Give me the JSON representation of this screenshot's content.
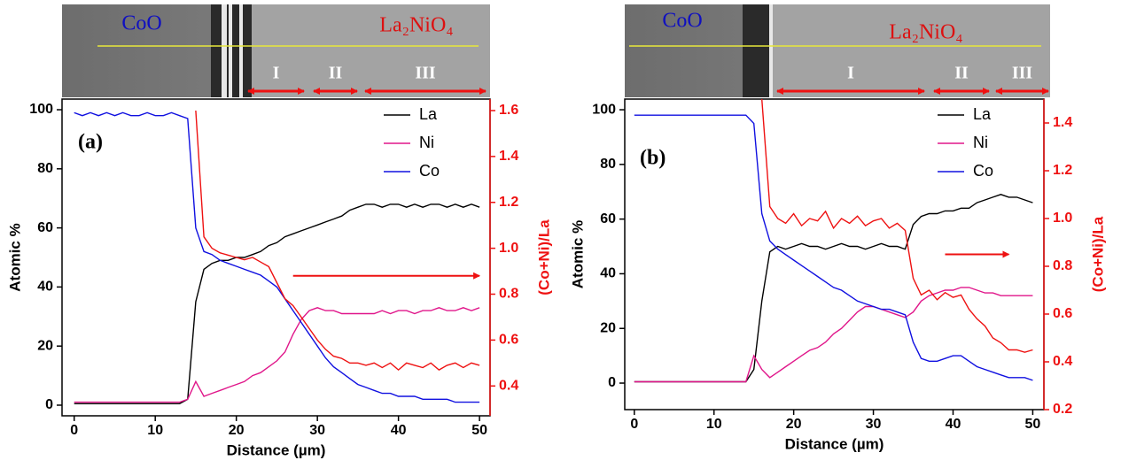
{
  "chart_data": [
    {
      "type": "line",
      "panel_label": "(a)",
      "xlabel": "Distance (µm)",
      "ylabel": "Atomic %",
      "image_labels": {
        "left": "CoO",
        "right": "La₂NiO₄",
        "regions": [
          "I",
          "II",
          "III"
        ]
      },
      "xlim": [
        -1.5,
        51.3
      ],
      "ylim": [
        -3.6,
        103.6
      ],
      "y2lim": [
        0.27,
        1.65
      ],
      "xticks": [
        0,
        10,
        20,
        30,
        40,
        50
      ],
      "yticks": [
        0,
        20,
        40,
        60,
        80,
        100
      ],
      "y2ticks": [
        0.4,
        0.6,
        0.8,
        {
          "value": 1,
          "label": "1.0"
        },
        1.2,
        1.4,
        1.6
      ],
      "legend": "upper right",
      "x": [
        0,
        1,
        2,
        3,
        4,
        5,
        6,
        7,
        8,
        9,
        10,
        11,
        12,
        13,
        14,
        15,
        16,
        17,
        18,
        19,
        20,
        21,
        22,
        23,
        24,
        25,
        26,
        27,
        28,
        29,
        30,
        31,
        32,
        33,
        34,
        35,
        36,
        37,
        38,
        39,
        40,
        41,
        42,
        43,
        44,
        45,
        46,
        47,
        48,
        49,
        50
      ],
      "series": [
        {
          "name": "La",
          "color": "#000000",
          "values": [
            0.5,
            0.5,
            0.5,
            0.5,
            0.5,
            0.5,
            0.5,
            0.5,
            0.5,
            0.5,
            0.5,
            0.5,
            0.5,
            0.5,
            2,
            35,
            46,
            48,
            49,
            49,
            50,
            50,
            51,
            52,
            54,
            55,
            57,
            58,
            59,
            60,
            61,
            62,
            63,
            64,
            66,
            67,
            68,
            68,
            67,
            68,
            68,
            67,
            68,
            67,
            68,
            68,
            67,
            68,
            67,
            68,
            67
          ]
        },
        {
          "name": "Ni",
          "color": "#e0168a",
          "values": [
            1,
            1,
            1,
            1,
            1,
            1,
            1,
            1,
            1,
            1,
            1,
            1,
            1,
            1,
            2,
            8,
            3,
            4,
            5,
            6,
            7,
            8,
            10,
            11,
            13,
            15,
            18,
            24,
            29,
            32,
            33,
            32,
            32,
            31,
            31,
            31,
            31,
            31,
            32,
            31,
            32,
            32,
            31,
            32,
            32,
            33,
            32,
            32,
            33,
            32,
            33
          ]
        },
        {
          "name": "Co",
          "color": "#1010e0",
          "values": [
            99,
            98,
            99,
            98,
            99,
            98,
            99,
            98,
            98,
            99,
            98,
            98,
            99,
            98,
            97,
            60,
            52,
            51,
            49,
            48,
            47,
            46,
            45,
            44,
            42,
            40,
            36,
            32,
            28,
            24,
            20,
            16,
            13,
            11,
            9,
            7,
            6,
            5,
            4,
            4,
            3,
            3,
            3,
            2,
            2,
            2,
            2,
            1,
            1,
            1,
            1
          ]
        },
        {
          "name": "(Co+Ni)/La",
          "color": "#ee1111",
          "axis": "y2",
          "values": [
            null,
            null,
            null,
            null,
            null,
            null,
            null,
            null,
            null,
            null,
            null,
            null,
            null,
            null,
            null,
            1.6,
            1.05,
            1.0,
            0.98,
            0.97,
            0.96,
            0.95,
            0.96,
            0.94,
            0.92,
            0.85,
            0.78,
            0.75,
            0.7,
            0.65,
            0.6,
            0.56,
            0.53,
            0.52,
            0.5,
            0.5,
            0.49,
            0.5,
            0.48,
            0.5,
            0.47,
            0.5,
            0.49,
            0.48,
            0.5,
            0.47,
            0.49,
            0.5,
            0.48,
            0.5,
            0.49
          ]
        }
      ]
    },
    {
      "type": "line",
      "panel_label": "(b)",
      "xlabel": "Distance (µm)",
      "ylabel": "Atomic %",
      "image_labels": {
        "left": "CoO",
        "right": "La₂NiO₄",
        "regions": [
          "I",
          "II",
          "III"
        ]
      },
      "xlim": [
        -1.2,
        51.4
      ],
      "ylim": [
        -9.7,
        103.9
      ],
      "y2lim": [
        0.2,
        1.5
      ],
      "xticks": [
        0,
        10,
        20,
        30,
        40,
        50
      ],
      "yticks": [
        0,
        20,
        40,
        60,
        80,
        100
      ],
      "y2ticks": [
        0.2,
        0.4,
        0.6,
        0.8,
        {
          "value": 1,
          "label": "1.0"
        },
        1.2,
        1.4
      ],
      "legend": "upper right",
      "x": [
        0,
        1,
        2,
        3,
        4,
        5,
        6,
        7,
        8,
        9,
        10,
        11,
        12,
        13,
        14,
        15,
        16,
        17,
        18,
        19,
        20,
        21,
        22,
        23,
        24,
        25,
        26,
        27,
        28,
        29,
        30,
        31,
        32,
        33,
        34,
        35,
        36,
        37,
        38,
        39,
        40,
        41,
        42,
        43,
        44,
        45,
        46,
        47,
        48,
        49,
        50
      ],
      "series": [
        {
          "name": "La",
          "color": "#000000",
          "values": [
            0.5,
            0.5,
            0.5,
            0.5,
            0.5,
            0.5,
            0.5,
            0.5,
            0.5,
            0.5,
            0.5,
            0.5,
            0.5,
            0.5,
            0.5,
            5,
            30,
            48,
            50,
            49,
            50,
            51,
            50,
            50,
            49,
            50,
            51,
            50,
            50,
            49,
            50,
            51,
            50,
            50,
            49,
            58,
            61,
            62,
            62,
            63,
            63,
            64,
            64,
            66,
            67,
            68,
            69,
            68,
            68,
            67,
            66
          ]
        },
        {
          "name": "Ni",
          "color": "#e0168a",
          "values": [
            0.5,
            0.5,
            0.5,
            0.5,
            0.5,
            0.5,
            0.5,
            0.5,
            0.5,
            0.5,
            0.5,
            0.5,
            0.5,
            0.5,
            0.5,
            10,
            5,
            2,
            4,
            6,
            8,
            10,
            12,
            13,
            15,
            18,
            20,
            23,
            26,
            28,
            28,
            27,
            26,
            25,
            24,
            26,
            30,
            32,
            33,
            34,
            34,
            35,
            35,
            34,
            33,
            33,
            32,
            32,
            32,
            32,
            32
          ]
        },
        {
          "name": "Co",
          "color": "#1010e0",
          "values": [
            98,
            98,
            98,
            98,
            98,
            98,
            98,
            98,
            98,
            98,
            98,
            98,
            98,
            98,
            98,
            95,
            62,
            52,
            49,
            47,
            45,
            43,
            41,
            39,
            37,
            35,
            34,
            32,
            30,
            29,
            28,
            27,
            27,
            26,
            25,
            15,
            9,
            8,
            8,
            9,
            10,
            10,
            8,
            6,
            5,
            4,
            3,
            2,
            2,
            2,
            1
          ]
        },
        {
          "name": "(Co+Ni)/La",
          "color": "#ee1111",
          "axis": "y2",
          "values": [
            null,
            null,
            null,
            null,
            null,
            null,
            null,
            null,
            null,
            null,
            null,
            null,
            null,
            null,
            null,
            null,
            1.5,
            1.05,
            1.0,
            0.98,
            1.02,
            0.97,
            1.0,
            0.99,
            1.03,
            0.96,
            1.0,
            0.98,
            1.01,
            0.97,
            0.99,
            1.0,
            0.96,
            0.98,
            0.95,
            0.75,
            0.68,
            0.7,
            0.66,
            0.69,
            0.67,
            0.68,
            0.62,
            0.58,
            0.55,
            0.5,
            0.48,
            0.45,
            0.45,
            0.44,
            0.45
          ]
        }
      ]
    }
  ]
}
